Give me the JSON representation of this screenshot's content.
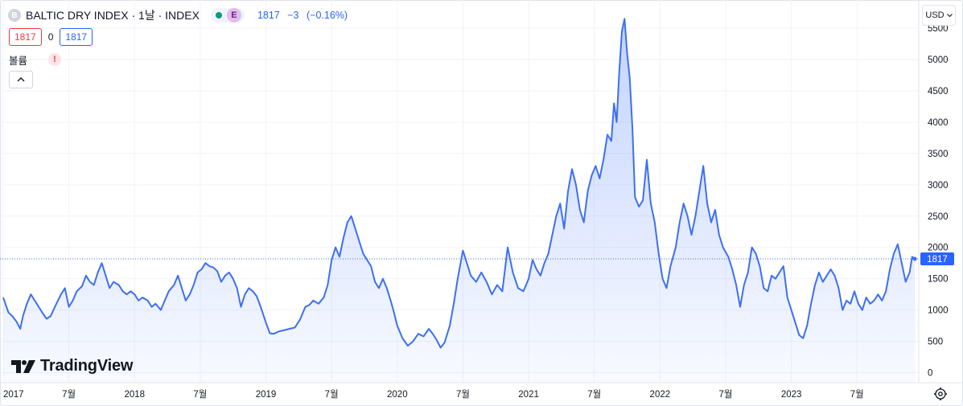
{
  "header": {
    "symbol_icon_letter": "B",
    "title": "BALTIC DRY INDEX · 1날 · INDEX",
    "status_badge": "E",
    "last_price": "1817",
    "change": "−3",
    "change_pct": "(−0.16%)"
  },
  "orderbox": {
    "sell": "1817",
    "spread": "0",
    "buy": "1817"
  },
  "volume": {
    "label": "볼륨",
    "warning": "!"
  },
  "currency": {
    "label": "USD"
  },
  "branding": {
    "logo_text": "TradingView"
  },
  "colors": {
    "line": "#3d6ff2",
    "fill_top": "rgba(41,98,255,0.28)",
    "fill_bottom": "rgba(41,98,255,0.03)",
    "grid": "#f0f3fa",
    "price_line": "#3d6ff2",
    "price_label_bg": "#2962ff"
  },
  "chart_data": {
    "type": "area",
    "title": "BALTIC DRY INDEX",
    "x_ticks": [
      {
        "x": 2017.0,
        "label": "2017"
      },
      {
        "x": 2017.5,
        "label": "7월"
      },
      {
        "x": 2018.0,
        "label": "2018"
      },
      {
        "x": 2018.5,
        "label": "7월"
      },
      {
        "x": 2019.0,
        "label": "2019"
      },
      {
        "x": 2019.5,
        "label": "7월"
      },
      {
        "x": 2020.0,
        "label": "2020"
      },
      {
        "x": 2020.5,
        "label": "7월"
      },
      {
        "x": 2021.0,
        "label": "2021"
      },
      {
        "x": 2021.5,
        "label": "7월"
      },
      {
        "x": 2022.0,
        "label": "2022"
      },
      {
        "x": 2022.5,
        "label": "7월"
      },
      {
        "x": 2023.0,
        "label": "2023"
      },
      {
        "x": 2023.5,
        "label": "7월"
      }
    ],
    "y_ticks": [
      0,
      500,
      1000,
      1500,
      2000,
      2500,
      3000,
      3500,
      4000,
      4500,
      5000,
      5500
    ],
    "xlim": [
      2017.0,
      2023.97
    ],
    "ylim": [
      -160,
      5950
    ],
    "last_value": 1817,
    "last_value_label": "1817",
    "grid": true,
    "series": [
      {
        "points": [
          [
            2017.0,
            1200
          ],
          [
            2017.02,
            1080
          ],
          [
            2017.04,
            960
          ],
          [
            2017.07,
            900
          ],
          [
            2017.1,
            820
          ],
          [
            2017.13,
            700
          ],
          [
            2017.15,
            900
          ],
          [
            2017.18,
            1100
          ],
          [
            2017.21,
            1250
          ],
          [
            2017.24,
            1150
          ],
          [
            2017.27,
            1050
          ],
          [
            2017.3,
            950
          ],
          [
            2017.33,
            860
          ],
          [
            2017.36,
            900
          ],
          [
            2017.4,
            1080
          ],
          [
            2017.44,
            1250
          ],
          [
            2017.47,
            1350
          ],
          [
            2017.5,
            1050
          ],
          [
            2017.53,
            1150
          ],
          [
            2017.56,
            1300
          ],
          [
            2017.6,
            1380
          ],
          [
            2017.63,
            1550
          ],
          [
            2017.66,
            1450
          ],
          [
            2017.69,
            1400
          ],
          [
            2017.72,
            1600
          ],
          [
            2017.75,
            1750
          ],
          [
            2017.78,
            1550
          ],
          [
            2017.81,
            1350
          ],
          [
            2017.84,
            1450
          ],
          [
            2017.88,
            1400
          ],
          [
            2017.91,
            1300
          ],
          [
            2017.94,
            1250
          ],
          [
            2017.97,
            1300
          ],
          [
            2018.0,
            1250
          ],
          [
            2018.03,
            1150
          ],
          [
            2018.06,
            1200
          ],
          [
            2018.1,
            1150
          ],
          [
            2018.13,
            1050
          ],
          [
            2018.16,
            1100
          ],
          [
            2018.2,
            1000
          ],
          [
            2018.23,
            1150
          ],
          [
            2018.26,
            1300
          ],
          [
            2018.3,
            1400
          ],
          [
            2018.33,
            1550
          ],
          [
            2018.36,
            1350
          ],
          [
            2018.39,
            1150
          ],
          [
            2018.42,
            1250
          ],
          [
            2018.45,
            1400
          ],
          [
            2018.48,
            1600
          ],
          [
            2018.51,
            1650
          ],
          [
            2018.54,
            1750
          ],
          [
            2018.57,
            1700
          ],
          [
            2018.6,
            1680
          ],
          [
            2018.63,
            1620
          ],
          [
            2018.66,
            1450
          ],
          [
            2018.69,
            1550
          ],
          [
            2018.72,
            1600
          ],
          [
            2018.75,
            1500
          ],
          [
            2018.78,
            1350
          ],
          [
            2018.81,
            1050
          ],
          [
            2018.84,
            1250
          ],
          [
            2018.87,
            1350
          ],
          [
            2018.9,
            1300
          ],
          [
            2018.93,
            1220
          ],
          [
            2018.96,
            1050
          ],
          [
            2019.0,
            800
          ],
          [
            2019.03,
            630
          ],
          [
            2019.06,
            620
          ],
          [
            2019.1,
            660
          ],
          [
            2019.14,
            680
          ],
          [
            2019.18,
            700
          ],
          [
            2019.22,
            720
          ],
          [
            2019.26,
            850
          ],
          [
            2019.3,
            1050
          ],
          [
            2019.33,
            1080
          ],
          [
            2019.36,
            1150
          ],
          [
            2019.4,
            1100
          ],
          [
            2019.44,
            1200
          ],
          [
            2019.47,
            1400
          ],
          [
            2019.5,
            1800
          ],
          [
            2019.53,
            2000
          ],
          [
            2019.56,
            1850
          ],
          [
            2019.59,
            2150
          ],
          [
            2019.62,
            2400
          ],
          [
            2019.65,
            2500
          ],
          [
            2019.68,
            2300
          ],
          [
            2019.71,
            2100
          ],
          [
            2019.74,
            1900
          ],
          [
            2019.77,
            1800
          ],
          [
            2019.8,
            1700
          ],
          [
            2019.83,
            1450
          ],
          [
            2019.86,
            1350
          ],
          [
            2019.89,
            1500
          ],
          [
            2019.92,
            1350
          ],
          [
            2019.95,
            1150
          ],
          [
            2019.97,
            1000
          ],
          [
            2020.0,
            750
          ],
          [
            2020.04,
            550
          ],
          [
            2020.08,
            430
          ],
          [
            2020.12,
            500
          ],
          [
            2020.16,
            620
          ],
          [
            2020.2,
            580
          ],
          [
            2020.24,
            700
          ],
          [
            2020.27,
            620
          ],
          [
            2020.3,
            520
          ],
          [
            2020.33,
            400
          ],
          [
            2020.36,
            480
          ],
          [
            2020.4,
            750
          ],
          [
            2020.43,
            1100
          ],
          [
            2020.46,
            1500
          ],
          [
            2020.5,
            1950
          ],
          [
            2020.53,
            1750
          ],
          [
            2020.56,
            1550
          ],
          [
            2020.6,
            1450
          ],
          [
            2020.64,
            1600
          ],
          [
            2020.68,
            1450
          ],
          [
            2020.72,
            1250
          ],
          [
            2020.76,
            1400
          ],
          [
            2020.8,
            1300
          ],
          [
            2020.84,
            2000
          ],
          [
            2020.88,
            1600
          ],
          [
            2020.92,
            1350
          ],
          [
            2020.96,
            1300
          ],
          [
            2021.0,
            1500
          ],
          [
            2021.03,
            1800
          ],
          [
            2021.06,
            1650
          ],
          [
            2021.09,
            1550
          ],
          [
            2021.12,
            1750
          ],
          [
            2021.15,
            1900
          ],
          [
            2021.18,
            2200
          ],
          [
            2021.21,
            2500
          ],
          [
            2021.24,
            2700
          ],
          [
            2021.27,
            2300
          ],
          [
            2021.3,
            2900
          ],
          [
            2021.33,
            3250
          ],
          [
            2021.36,
            3000
          ],
          [
            2021.39,
            2600
          ],
          [
            2021.42,
            2400
          ],
          [
            2021.45,
            2900
          ],
          [
            2021.48,
            3150
          ],
          [
            2021.51,
            3300
          ],
          [
            2021.54,
            3100
          ],
          [
            2021.57,
            3400
          ],
          [
            2021.6,
            3800
          ],
          [
            2021.63,
            3700
          ],
          [
            2021.65,
            4300
          ],
          [
            2021.67,
            4000
          ],
          [
            2021.69,
            4800
          ],
          [
            2021.71,
            5450
          ],
          [
            2021.73,
            5650
          ],
          [
            2021.75,
            5100
          ],
          [
            2021.77,
            4700
          ],
          [
            2021.79,
            3900
          ],
          [
            2021.81,
            2800
          ],
          [
            2021.84,
            2650
          ],
          [
            2021.87,
            2750
          ],
          [
            2021.9,
            3400
          ],
          [
            2021.93,
            2700
          ],
          [
            2021.96,
            2400
          ],
          [
            2021.99,
            1900
          ],
          [
            2022.02,
            1500
          ],
          [
            2022.05,
            1350
          ],
          [
            2022.08,
            1700
          ],
          [
            2022.12,
            2000
          ],
          [
            2022.15,
            2400
          ],
          [
            2022.18,
            2700
          ],
          [
            2022.21,
            2500
          ],
          [
            2022.24,
            2200
          ],
          [
            2022.27,
            2500
          ],
          [
            2022.3,
            2900
          ],
          [
            2022.33,
            3300
          ],
          [
            2022.36,
            2700
          ],
          [
            2022.39,
            2400
          ],
          [
            2022.42,
            2600
          ],
          [
            2022.45,
            2200
          ],
          [
            2022.48,
            2000
          ],
          [
            2022.52,
            1850
          ],
          [
            2022.55,
            1650
          ],
          [
            2022.58,
            1400
          ],
          [
            2022.61,
            1050
          ],
          [
            2022.64,
            1400
          ],
          [
            2022.67,
            1600
          ],
          [
            2022.7,
            2000
          ],
          [
            2022.73,
            1900
          ],
          [
            2022.76,
            1700
          ],
          [
            2022.79,
            1350
          ],
          [
            2022.82,
            1300
          ],
          [
            2022.85,
            1550
          ],
          [
            2022.88,
            1500
          ],
          [
            2022.91,
            1600
          ],
          [
            2022.94,
            1700
          ],
          [
            2022.97,
            1200
          ],
          [
            2023.0,
            1000
          ],
          [
            2023.03,
            800
          ],
          [
            2023.06,
            600
          ],
          [
            2023.09,
            550
          ],
          [
            2023.12,
            750
          ],
          [
            2023.15,
            1100
          ],
          [
            2023.18,
            1400
          ],
          [
            2023.21,
            1600
          ],
          [
            2023.24,
            1450
          ],
          [
            2023.27,
            1550
          ],
          [
            2023.3,
            1650
          ],
          [
            2023.33,
            1550
          ],
          [
            2023.36,
            1350
          ],
          [
            2023.39,
            1000
          ],
          [
            2023.42,
            1150
          ],
          [
            2023.45,
            1100
          ],
          [
            2023.48,
            1300
          ],
          [
            2023.51,
            1100
          ],
          [
            2023.54,
            1000
          ],
          [
            2023.57,
            1200
          ],
          [
            2023.6,
            1100
          ],
          [
            2023.63,
            1150
          ],
          [
            2023.66,
            1250
          ],
          [
            2023.69,
            1150
          ],
          [
            2023.72,
            1300
          ],
          [
            2023.75,
            1650
          ],
          [
            2023.78,
            1900
          ],
          [
            2023.81,
            2050
          ],
          [
            2023.84,
            1750
          ],
          [
            2023.87,
            1450
          ],
          [
            2023.9,
            1600
          ],
          [
            2023.92,
            1850
          ],
          [
            2023.94,
            1817
          ]
        ]
      }
    ]
  }
}
